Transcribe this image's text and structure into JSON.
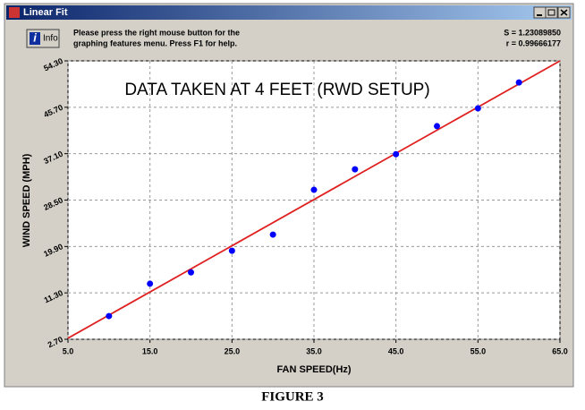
{
  "window": {
    "title": "Linear Fit",
    "info_icon": "i",
    "info_button": "Info",
    "help_text": [
      "Please press the right mouse button for the",
      "graphing features menu.  Press F1 for help."
    ],
    "stats": [
      "S = 1.23089850",
      "r = 0.99666177"
    ]
  },
  "chart_data": {
    "type": "scatter",
    "annotation": "DATA TAKEN AT 4 FEET (RWD SETUP)",
    "x_label": "FAN SPEED(Hz)",
    "y_label": "WIND SPEED (MPH)",
    "series": [
      {
        "type": "scatter",
        "color": "#0000ff",
        "x": [
          10,
          15,
          20,
          25,
          30,
          35,
          40,
          45,
          50,
          55,
          60
        ],
        "values": [
          7.0,
          13.0,
          15.1,
          19.1,
          22.1,
          30.4,
          34.2,
          37.0,
          42.2,
          45.5,
          50.3
        ]
      },
      {
        "type": "line",
        "color": "#e02020",
        "x": [
          5,
          65
        ],
        "values": [
          2.9,
          54.3
        ]
      }
    ],
    "xlim": [
      5,
      65
    ],
    "ylim": [
      2.7,
      54.3
    ],
    "xticks": [
      {
        "value": 5,
        "label": "5.0"
      },
      {
        "value": 15,
        "label": "15.0"
      },
      {
        "value": 25,
        "label": "25.0"
      },
      {
        "value": 35,
        "label": "35.0"
      },
      {
        "value": 45,
        "label": "45.0"
      },
      {
        "value": 55,
        "label": "55.0"
      },
      {
        "value": 65,
        "label": "65.0"
      }
    ],
    "yticks": [
      {
        "value": 2.7,
        "label": "2.70"
      },
      {
        "value": 11.3,
        "label": "11.30"
      },
      {
        "value": 19.9,
        "label": "19.90"
      },
      {
        "value": 28.5,
        "label": "28.50"
      },
      {
        "value": 37.1,
        "label": "37.10"
      },
      {
        "value": 45.7,
        "label": "45.70"
      },
      {
        "value": 54.3,
        "label": "54.30"
      }
    ],
    "grid": true
  },
  "caption": "FIGURE 3"
}
